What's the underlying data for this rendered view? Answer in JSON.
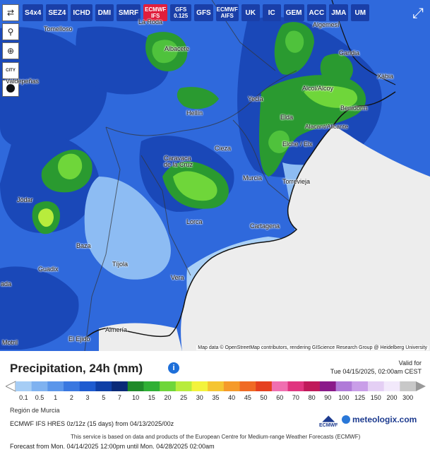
{
  "toolbar": {
    "buttons": [
      {
        "id": "s4x4",
        "label": "S4x4"
      },
      {
        "id": "sez4",
        "label": "SEZ4"
      },
      {
        "id": "ichd",
        "label": "ICHD"
      },
      {
        "id": "dmi",
        "label": "DMI"
      },
      {
        "id": "smrf",
        "label": "SMRF"
      },
      {
        "id": "ecmwf_ifs",
        "label": "ECMWF IFS"
      },
      {
        "id": "gfs0125",
        "label": "GFS 0.125"
      },
      {
        "id": "gfs",
        "label": "GFS"
      },
      {
        "id": "ecmwf_aifs",
        "label": "ECMWF AIFS"
      },
      {
        "id": "uk",
        "label": "UK"
      },
      {
        "id": "ic",
        "label": "IC"
      },
      {
        "id": "gem",
        "label": "GEM"
      },
      {
        "id": "acc",
        "label": "ACC"
      },
      {
        "id": "jma",
        "label": "JMA"
      },
      {
        "id": "um",
        "label": "UM"
      }
    ],
    "active": "ECMWF IFS"
  },
  "side_tools": {
    "city_label": "CITY"
  },
  "places": [
    {
      "name": "Tomelloso",
      "cls": "p1"
    },
    {
      "name": "La Roda",
      "cls": "p2"
    },
    {
      "name": "Algemesí",
      "cls": "p3"
    },
    {
      "name": "Albacete",
      "cls": "p4"
    },
    {
      "name": "Gandia",
      "cls": "p5"
    },
    {
      "name": "Xàbia",
      "cls": "p6"
    },
    {
      "name": "Valdepeñas",
      "cls": "p7"
    },
    {
      "name": "Alcoi/Alcoy",
      "cls": "p8"
    },
    {
      "name": "Hellín",
      "cls": "p9"
    },
    {
      "name": "Yecla",
      "cls": "p10"
    },
    {
      "name": "Elda",
      "cls": "p11"
    },
    {
      "name": "Benidorm",
      "cls": "p12"
    },
    {
      "name": "Alacant/Alicante",
      "cls": "p13"
    },
    {
      "name": "Elche / Elx",
      "cls": "p14"
    },
    {
      "name": "Caravaca de la Cruz",
      "cls": "p15"
    },
    {
      "name": "Cieza",
      "cls": "p16"
    },
    {
      "name": "Murcia",
      "cls": "p17"
    },
    {
      "name": "Torrevieja",
      "cls": "p18"
    },
    {
      "name": "Jódar",
      "cls": "p19"
    },
    {
      "name": "Lorca",
      "cls": "p20"
    },
    {
      "name": "Cartagena",
      "cls": "p21"
    },
    {
      "name": "Baza",
      "cls": "p22"
    },
    {
      "name": "Tíjola",
      "cls": "p23"
    },
    {
      "name": "Guadix",
      "cls": "p24"
    },
    {
      "name": "Vera",
      "cls": "p25"
    },
    {
      "name": "Almería",
      "cls": "p26"
    },
    {
      "name": "El Ejido",
      "cls": "p27"
    },
    {
      "name": "Motril",
      "cls": "p28"
    },
    {
      "name": "ada",
      "cls": "p29"
    }
  ],
  "attribution": "Map data © OpenStreetMap contributors, rendering GIScience Research Group @ Heidelberg University",
  "legend": {
    "title": "Precipitation, 24h (mm)",
    "info_icon": "info-icon",
    "valid_for": "Valid for",
    "valid_time": "Tue 04/15/2025, 02:00am CEST",
    "ticks": [
      "0.1",
      "0.5",
      "1",
      "2",
      "3",
      "5",
      "7",
      "10",
      "15",
      "20",
      "25",
      "30",
      "35",
      "40",
      "45",
      "50",
      "60",
      "70",
      "80",
      "90",
      "100",
      "125",
      "150",
      "200",
      "300"
    ],
    "colors": [
      "#a6cdf5",
      "#7fb2f0",
      "#5b96ea",
      "#3a78e0",
      "#1e5bd0",
      "#0f3fa6",
      "#0a2a78",
      "#1f8a2a",
      "#2fb035",
      "#6fd63a",
      "#b8ec3c",
      "#f3f33c",
      "#f5c531",
      "#f59a2a",
      "#f06a24",
      "#e5401f",
      "#f06fb0",
      "#e0357f",
      "#c01a5a",
      "#8a1a8a",
      "#b07ad8",
      "#c99ee8",
      "#e4cff4",
      "#f2e9fb",
      "#c8c8c8"
    ]
  },
  "footer": {
    "region": "Región de Murcia",
    "model": "ECMWF IFS HRES 0z/12z (15 days) from 04/13/2025/00z",
    "note": "This service is based on data and products of the European Centre for Medium-range Weather Forecasts (ECMWF)",
    "forecast": "Forecast from Mon. 04/14/2025 12:00pm until Mon. 04/28/2025 02:00am",
    "ecmwf_logo": "ECMWF",
    "brand": "meteologix.com"
  }
}
